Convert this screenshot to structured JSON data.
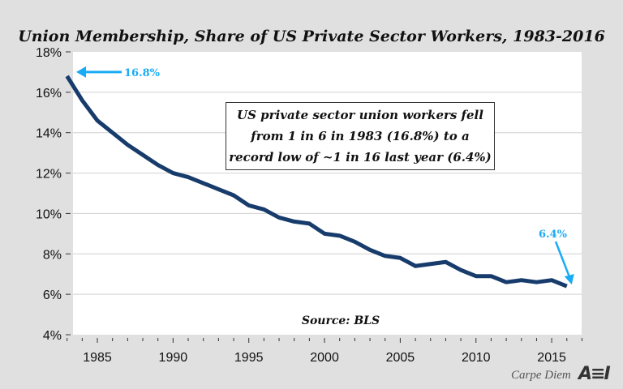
{
  "chart_data": {
    "type": "line",
    "title": "Union Membership, Share of US Private Sector Workers, 1983-2016",
    "xlabel": "",
    "ylabel": "",
    "x": [
      1983,
      1984,
      1985,
      1986,
      1987,
      1988,
      1989,
      1990,
      1991,
      1992,
      1993,
      1994,
      1995,
      1996,
      1997,
      1998,
      1999,
      2000,
      2001,
      2002,
      2003,
      2004,
      2005,
      2006,
      2007,
      2008,
      2009,
      2010,
      2011,
      2012,
      2013,
      2014,
      2015,
      2016
    ],
    "series": [
      {
        "values": [
          16.8,
          15.6,
          14.6,
          14.0,
          13.4,
          12.9,
          12.4,
          12.0,
          11.8,
          11.5,
          11.2,
          10.9,
          10.4,
          10.2,
          9.8,
          9.6,
          9.5,
          9.0,
          8.9,
          8.6,
          8.2,
          7.9,
          7.8,
          7.4,
          7.5,
          7.6,
          7.2,
          6.9,
          6.9,
          6.6,
          6.7,
          6.6,
          6.7,
          6.4
        ],
        "color": "#173c6c"
      }
    ],
    "ylim": [
      4,
      18
    ],
    "yticks": [
      "4%",
      "6%",
      "8%",
      "10%",
      "12%",
      "14%",
      "16%",
      "18%"
    ],
    "xticks": [
      "1985",
      "1990",
      "1995",
      "2000",
      "2005",
      "2010",
      "2015"
    ],
    "grid": true,
    "annotations": {
      "start": "16.8%",
      "end": "6.4%",
      "note_lines": [
        "US private sector union workers fell",
        "from 1 in 6 in 1983 (16.8%) to a",
        "record low of ~1 in 16 last year (6.4%)"
      ],
      "source": "Source: BLS",
      "arrow_color": "#1aabf5"
    }
  },
  "footer": {
    "brand": "Carpe Diem",
    "logo": "AEI"
  }
}
